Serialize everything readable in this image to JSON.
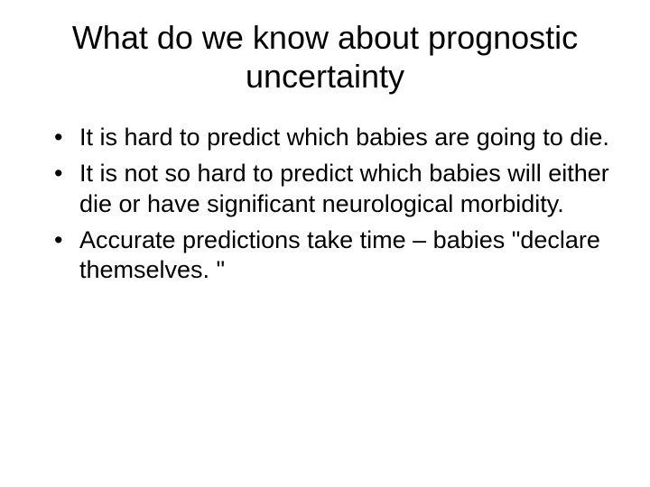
{
  "slide": {
    "title": "What do we know about prognostic uncertainty",
    "bullets": [
      "It is hard to predict which babies are going to die.",
      "It is not so hard to predict which babies will either die or have significant neurological morbidity.",
      "Accurate predictions take time – babies \"declare themselves. \""
    ],
    "background_color": "#ffffff",
    "text_color": "#000000",
    "title_fontsize": 36,
    "body_fontsize": 27
  }
}
